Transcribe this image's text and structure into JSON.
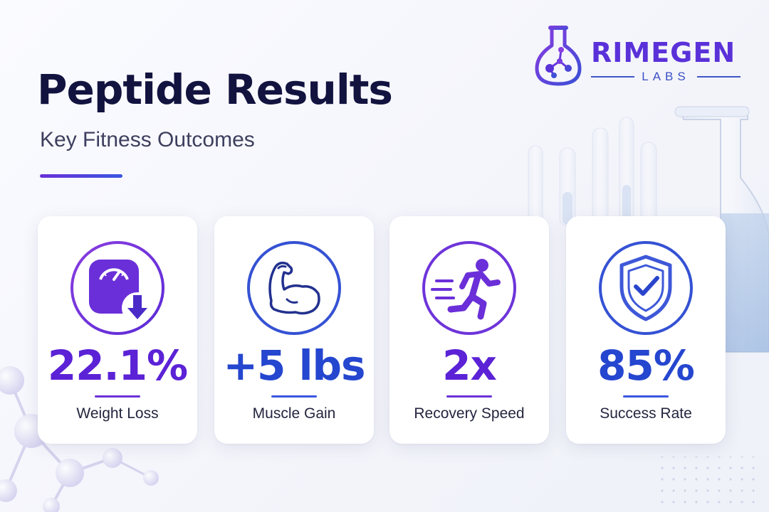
{
  "header": {
    "title": "Peptide Results",
    "subtitle": "Key Fitness Outcomes"
  },
  "brand": {
    "name": "RIMEGEN",
    "sub": "LABS"
  },
  "colors": {
    "purple": "#5b22d6",
    "blue": "#2546cf",
    "title": "#12133f"
  },
  "metrics": [
    {
      "value": "22.1%",
      "label": "Weight Loss",
      "icon": "scale-down-icon",
      "color": "#5b22d6"
    },
    {
      "value": "+5 lbs",
      "label": "Muscle Gain",
      "icon": "flexed-arm-icon",
      "color": "#2546cf"
    },
    {
      "value": "2x",
      "label": "Recovery Speed",
      "icon": "running-person-icon",
      "color": "#5b22d6"
    },
    {
      "value": "85%",
      "label": "Success Rate",
      "icon": "shield-check-icon",
      "color": "#2546cf"
    }
  ]
}
